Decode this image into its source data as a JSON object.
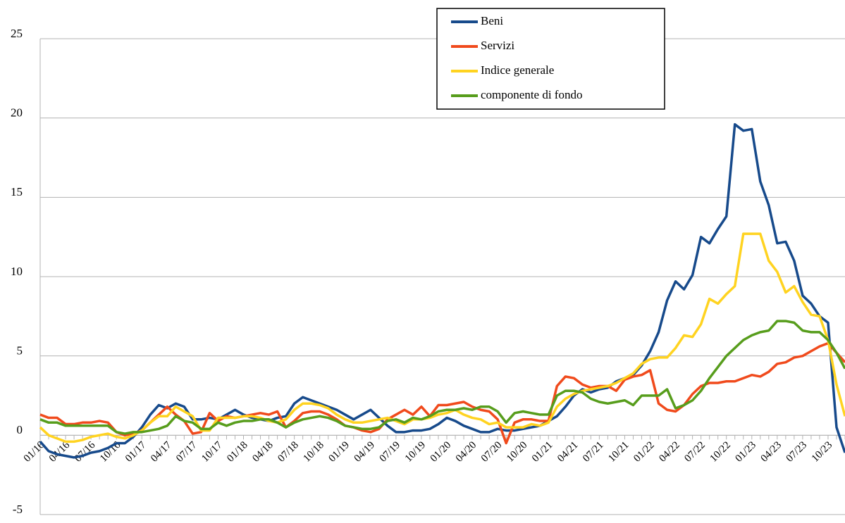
{
  "chart_data": {
    "type": "line",
    "categories": [
      "01/16",
      null,
      null,
      "04/16",
      null,
      null,
      "07/16",
      null,
      null,
      "10/16",
      null,
      null,
      "01/17",
      null,
      null,
      "04/17",
      null,
      null,
      "07/17",
      null,
      null,
      "10/17",
      null,
      null,
      "01/18",
      null,
      null,
      "04/18",
      null,
      null,
      "07/18",
      null,
      null,
      "10/18",
      null,
      null,
      "01/19",
      null,
      null,
      "04/19",
      null,
      null,
      "07/19",
      null,
      null,
      "10/19",
      null,
      null,
      "01/20",
      null,
      null,
      "04/20",
      null,
      null,
      "07/20",
      null,
      null,
      "10/20",
      null,
      null,
      "01/21",
      null,
      null,
      "04/21",
      null,
      null,
      "07/21",
      null,
      null,
      "10/21",
      null,
      null,
      "01/22",
      null,
      null,
      "04/22",
      null,
      null,
      "07/22",
      null,
      null,
      "10/22",
      null,
      null,
      "01/23",
      null,
      null,
      "04/23",
      null,
      null,
      "07/23",
      null,
      null,
      "10/23",
      null,
      null
    ],
    "series": [
      {
        "name": "Beni",
        "color": "#174a8b",
        "values": [
          -0.4,
          -1.0,
          -1.2,
          -1.3,
          -1.4,
          -1.3,
          -1.1,
          -1.0,
          -0.8,
          -0.5,
          -0.5,
          -0.1,
          0.5,
          1.3,
          1.9,
          1.7,
          2.0,
          1.8,
          1.0,
          1.0,
          1.1,
          1.0,
          1.3,
          1.6,
          1.3,
          1.1,
          1.0,
          0.9,
          1.1,
          1.2,
          2.0,
          2.4,
          2.2,
          2.0,
          1.8,
          1.6,
          1.3,
          1.0,
          1.3,
          1.6,
          1.1,
          0.6,
          0.2,
          0.2,
          0.3,
          0.3,
          0.4,
          0.7,
          1.1,
          0.9,
          0.6,
          0.4,
          0.2,
          0.2,
          0.4,
          0.3,
          0.3,
          0.4,
          0.5,
          0.6,
          0.9,
          1.2,
          1.8,
          2.5,
          2.9,
          2.7,
          2.9,
          3.0,
          3.4,
          3.6,
          3.8,
          4.4,
          5.3,
          6.5,
          8.5,
          9.7,
          9.2,
          10.1,
          12.5,
          12.1,
          13.0,
          13.8,
          19.6,
          19.2,
          19.3,
          16.0,
          14.5,
          12.1,
          12.2,
          11.0,
          8.8,
          8.3,
          7.5,
          7.1,
          0.5,
          -1.1
        ]
      },
      {
        "name": "Servizi",
        "color": "#f04a1c",
        "values": [
          1.3,
          1.1,
          1.1,
          0.7,
          0.7,
          0.8,
          0.8,
          0.9,
          0.8,
          0.2,
          0.0,
          0.1,
          0.3,
          0.8,
          1.3,
          1.8,
          1.3,
          0.9,
          0.1,
          0.2,
          1.4,
          0.9,
          1.2,
          1.1,
          1.2,
          1.3,
          1.4,
          1.3,
          1.5,
          0.5,
          0.9,
          1.4,
          1.5,
          1.5,
          1.3,
          1.0,
          0.6,
          0.5,
          0.3,
          0.2,
          0.4,
          1.0,
          1.3,
          1.6,
          1.3,
          1.8,
          1.2,
          1.9,
          1.9,
          2.0,
          2.1,
          1.8,
          1.6,
          1.5,
          1.0,
          -0.5,
          0.8,
          1.0,
          1.0,
          0.9,
          0.9,
          3.1,
          3.7,
          3.6,
          3.2,
          3.0,
          3.1,
          3.1,
          2.8,
          3.5,
          3.7,
          3.8,
          4.1,
          2.0,
          1.6,
          1.5,
          1.9,
          2.6,
          3.1,
          3.3,
          3.3,
          3.4,
          3.4,
          3.6,
          3.8,
          3.7,
          4.0,
          4.5,
          4.6,
          4.9,
          5.0,
          5.3,
          5.6,
          5.8,
          5.2,
          4.6
        ]
      },
      {
        "name": "Indice generale",
        "color": "#ffd320",
        "values": [
          0.5,
          0.0,
          -0.2,
          -0.4,
          -0.4,
          -0.3,
          -0.1,
          0.0,
          0.1,
          -0.1,
          -0.2,
          0.0,
          0.3,
          0.8,
          1.2,
          1.2,
          1.8,
          1.5,
          1.2,
          0.3,
          0.3,
          1.1,
          1.1,
          1.1,
          1.2,
          1.2,
          1.1,
          0.9,
          0.8,
          1.0,
          1.6,
          2.0,
          2.0,
          1.9,
          1.7,
          1.3,
          1.0,
          0.8,
          0.8,
          0.9,
          1.0,
          1.1,
          0.9,
          0.7,
          1.0,
          1.0,
          1.1,
          1.3,
          1.4,
          1.6,
          1.3,
          1.1,
          1.0,
          0.7,
          0.8,
          0.5,
          0.5,
          0.5,
          0.7,
          0.6,
          0.8,
          1.8,
          2.3,
          2.6,
          2.8,
          2.9,
          3.0,
          3.1,
          3.3,
          3.6,
          3.9,
          4.5,
          4.8,
          4.9,
          4.9,
          5.5,
          6.3,
          6.2,
          7.0,
          8.6,
          8.3,
          8.9,
          9.4,
          12.7,
          12.7,
          12.7,
          11.0,
          10.3,
          9.0,
          9.4,
          8.4,
          7.6,
          7.5,
          6.0,
          3.2,
          1.2
        ]
      },
      {
        "name": "componente di fondo",
        "color": "#579d1c",
        "values": [
          1.0,
          0.8,
          0.8,
          0.6,
          0.6,
          0.6,
          0.6,
          0.6,
          0.6,
          0.2,
          0.1,
          0.2,
          0.2,
          0.3,
          0.4,
          0.6,
          1.2,
          0.9,
          0.8,
          0.4,
          0.4,
          0.8,
          0.6,
          0.8,
          0.9,
          0.9,
          1.0,
          1.0,
          0.8,
          0.5,
          0.8,
          1.0,
          1.1,
          1.2,
          1.1,
          0.9,
          0.6,
          0.5,
          0.4,
          0.4,
          0.5,
          0.9,
          1.0,
          0.8,
          1.1,
          1.0,
          1.2,
          1.5,
          1.6,
          1.6,
          1.7,
          1.6,
          1.8,
          1.8,
          1.5,
          0.8,
          1.4,
          1.5,
          1.4,
          1.3,
          1.3,
          2.5,
          2.8,
          2.8,
          2.7,
          2.3,
          2.1,
          2.0,
          2.1,
          2.2,
          1.9,
          2.5,
          2.5,
          2.5,
          2.9,
          1.7,
          1.9,
          2.2,
          2.8,
          3.6,
          4.3,
          5.0,
          5.5,
          6.0,
          6.3,
          6.5,
          6.6,
          7.2,
          7.2,
          7.1,
          6.6,
          6.5,
          6.5,
          6.0,
          5.2,
          4.2
        ]
      }
    ],
    "ylim": [
      -5,
      25
    ],
    "yticks": [
      -5,
      0,
      5,
      10,
      15,
      20,
      25
    ],
    "grid": true,
    "legend": "upper center"
  }
}
